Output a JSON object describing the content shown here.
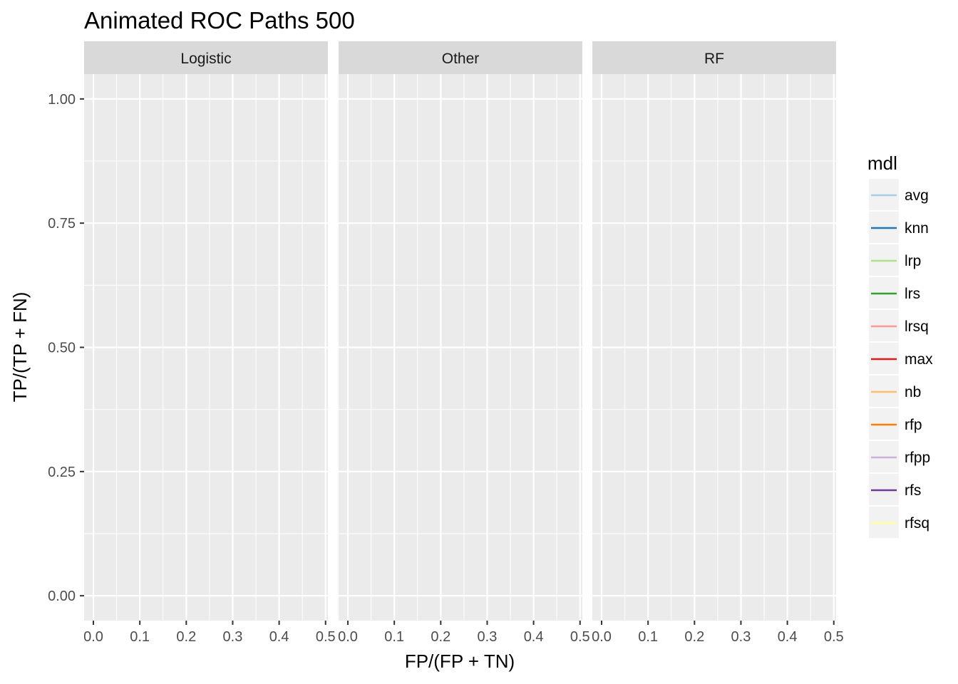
{
  "chart_data": {
    "type": "line",
    "title": "Animated ROC Paths 500",
    "xlabel": "FP/(FP + TN)",
    "ylabel": "TP/(TP + FN)",
    "facets": [
      "Logistic",
      "Other",
      "RF"
    ],
    "xlim": [
      -0.02,
      0.505
    ],
    "ylim": [
      -0.05,
      1.05
    ],
    "x_ticks": [
      0.0,
      0.1,
      0.2,
      0.3,
      0.4,
      0.5
    ],
    "x_tick_labels": [
      "0.0",
      "0.1",
      "0.2",
      "0.3",
      "0.4",
      "0.5"
    ],
    "y_ticks": [
      0.0,
      0.25,
      0.5,
      0.75,
      1.0
    ],
    "y_tick_labels": [
      "0.00",
      "0.25",
      "0.50",
      "0.75",
      "1.00"
    ],
    "grid": true,
    "legend": {
      "title": "mdl",
      "position": "right",
      "items": [
        {
          "name": "avg",
          "color": "#A6CEE3"
        },
        {
          "name": "knn",
          "color": "#1F78B4"
        },
        {
          "name": "lrp",
          "color": "#B2DF8A"
        },
        {
          "name": "lrs",
          "color": "#33A02C"
        },
        {
          "name": "lrsq",
          "color": "#FB9A99"
        },
        {
          "name": "max",
          "color": "#E31A1C"
        },
        {
          "name": "nb",
          "color": "#FDBF6F"
        },
        {
          "name": "rfp",
          "color": "#FF7F00"
        },
        {
          "name": "rfpp",
          "color": "#CAB2D6"
        },
        {
          "name": "rfs",
          "color": "#6A3D9A"
        },
        {
          "name": "rfsq",
          "color": "#FFFF99"
        }
      ]
    },
    "series": []
  }
}
